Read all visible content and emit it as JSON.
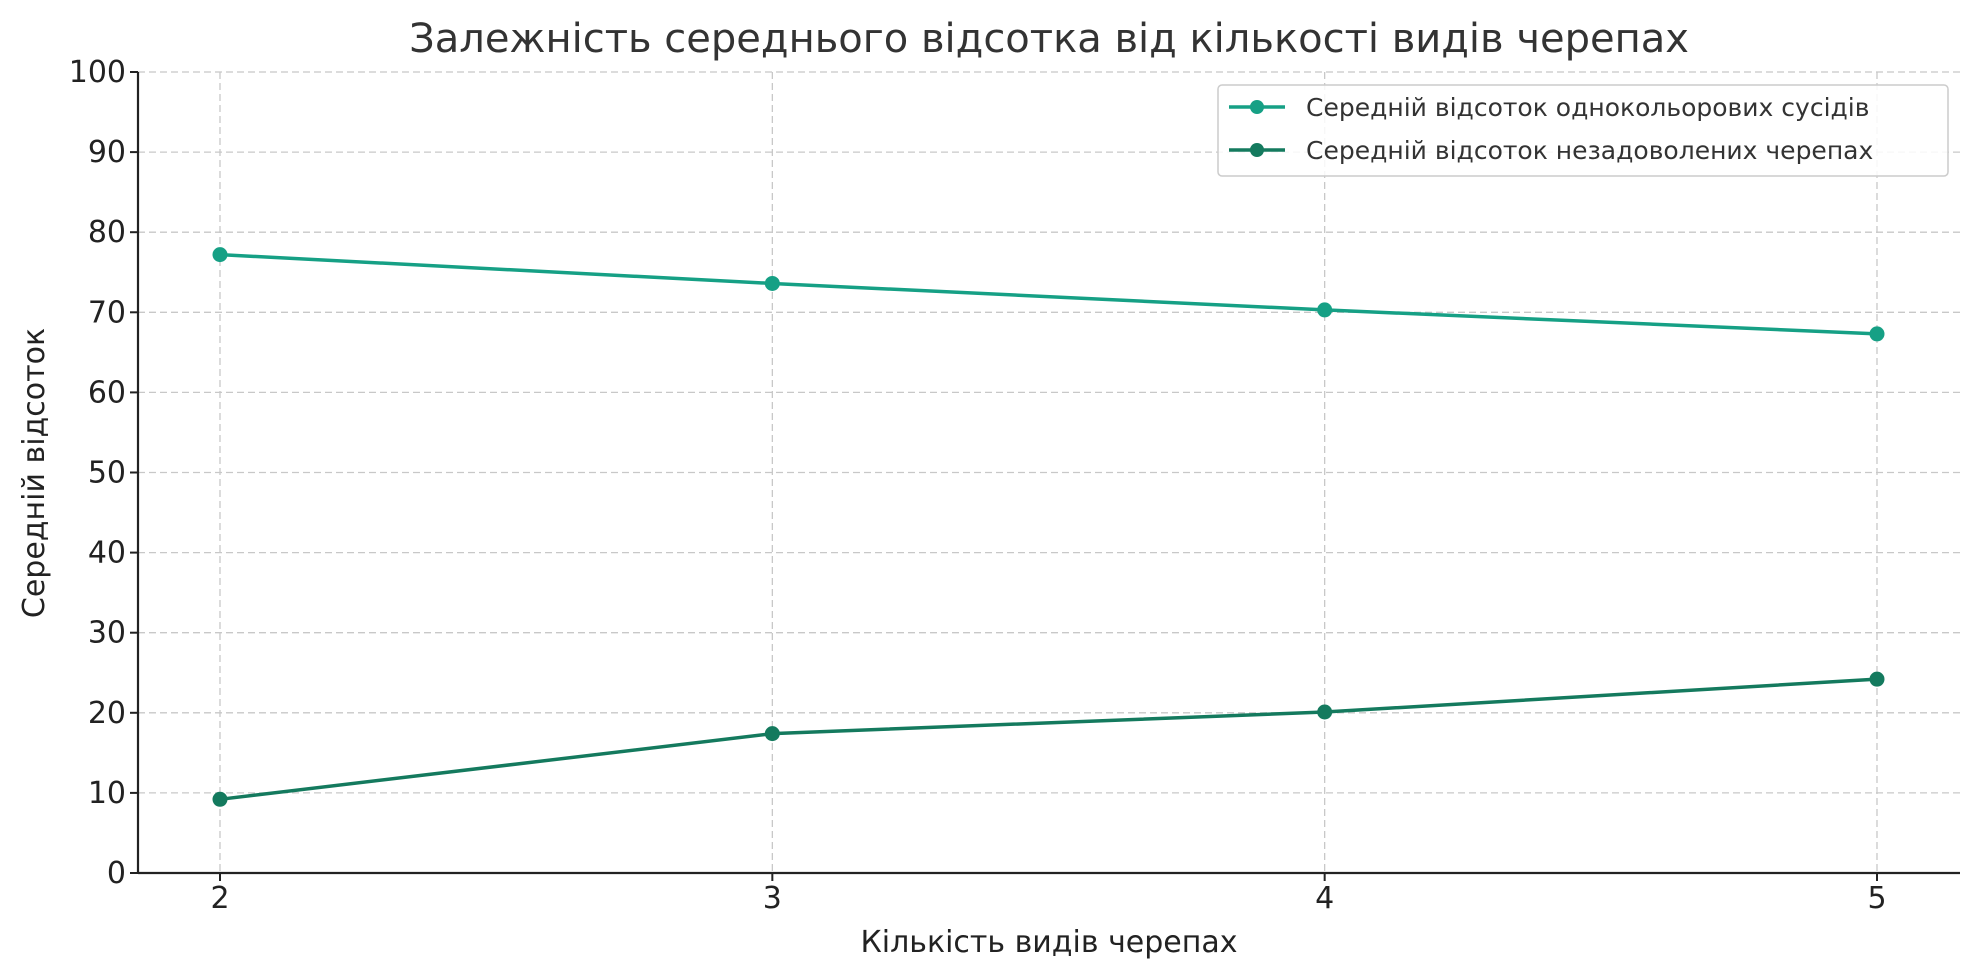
{
  "chart_data": {
    "type": "line",
    "title": "Залежність середнього відсотка від кількості видів черепах",
    "xlabel": "Кількість видів черепах",
    "ylabel": "Середній відсоток",
    "x": [
      2,
      3,
      4,
      5
    ],
    "x_tick_labels": [
      "2",
      "3",
      "4",
      "5"
    ],
    "ylim": [
      0,
      100
    ],
    "y_ticks": [
      0,
      10,
      20,
      30,
      40,
      50,
      60,
      70,
      80,
      90,
      100
    ],
    "grid": true,
    "legend_position": "top-right",
    "series": [
      {
        "name": "Середній відсоток однокольорових сусідів",
        "values": [
          77.2,
          73.6,
          70.3,
          67.3
        ],
        "color": "#16a085"
      },
      {
        "name": "Середній відсоток незадоволених черепах",
        "values": [
          9.2,
          17.4,
          20.1,
          24.2
        ],
        "color": "#147a5e"
      }
    ]
  }
}
